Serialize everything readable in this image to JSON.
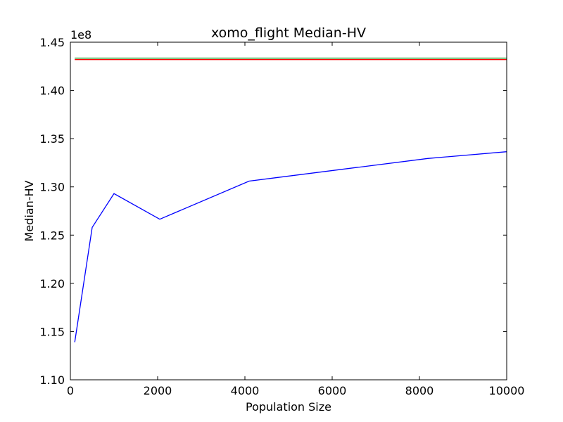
{
  "chart_data": {
    "type": "line",
    "title": "xomo_flight Median-HV",
    "xlabel": "Population Size",
    "ylabel": "Median-HV",
    "y_offset_label": "1e8",
    "xlim": [
      0,
      10000
    ],
    "ylim": [
      1.1,
      1.45
    ],
    "x_ticks": [
      0,
      2000,
      4000,
      6000,
      8000,
      10000
    ],
    "x_tick_labels": [
      "0",
      "2000",
      "4000",
      "6000",
      "8000",
      "10000"
    ],
    "y_ticks": [
      1.1,
      1.15,
      1.2,
      1.25,
      1.3,
      1.35,
      1.4,
      1.45
    ],
    "y_tick_labels": [
      "1.10",
      "1.15",
      "1.20",
      "1.25",
      "1.30",
      "1.35",
      "1.40",
      "1.45"
    ],
    "grid": false,
    "series": [
      {
        "color": "#0000ff",
        "x": [
          100,
          500,
          1000,
          2048,
          4096,
          8192,
          10000
        ],
        "y": [
          1.139,
          1.258,
          1.293,
          1.2665,
          1.306,
          1.3295,
          1.3365
        ]
      },
      {
        "color": "#008000",
        "x": [
          100,
          10000
        ],
        "y": [
          1.4335,
          1.4335
        ]
      },
      {
        "color": "#ff0000",
        "x": [
          100,
          10000
        ],
        "y": [
          1.432,
          1.432
        ]
      }
    ]
  }
}
